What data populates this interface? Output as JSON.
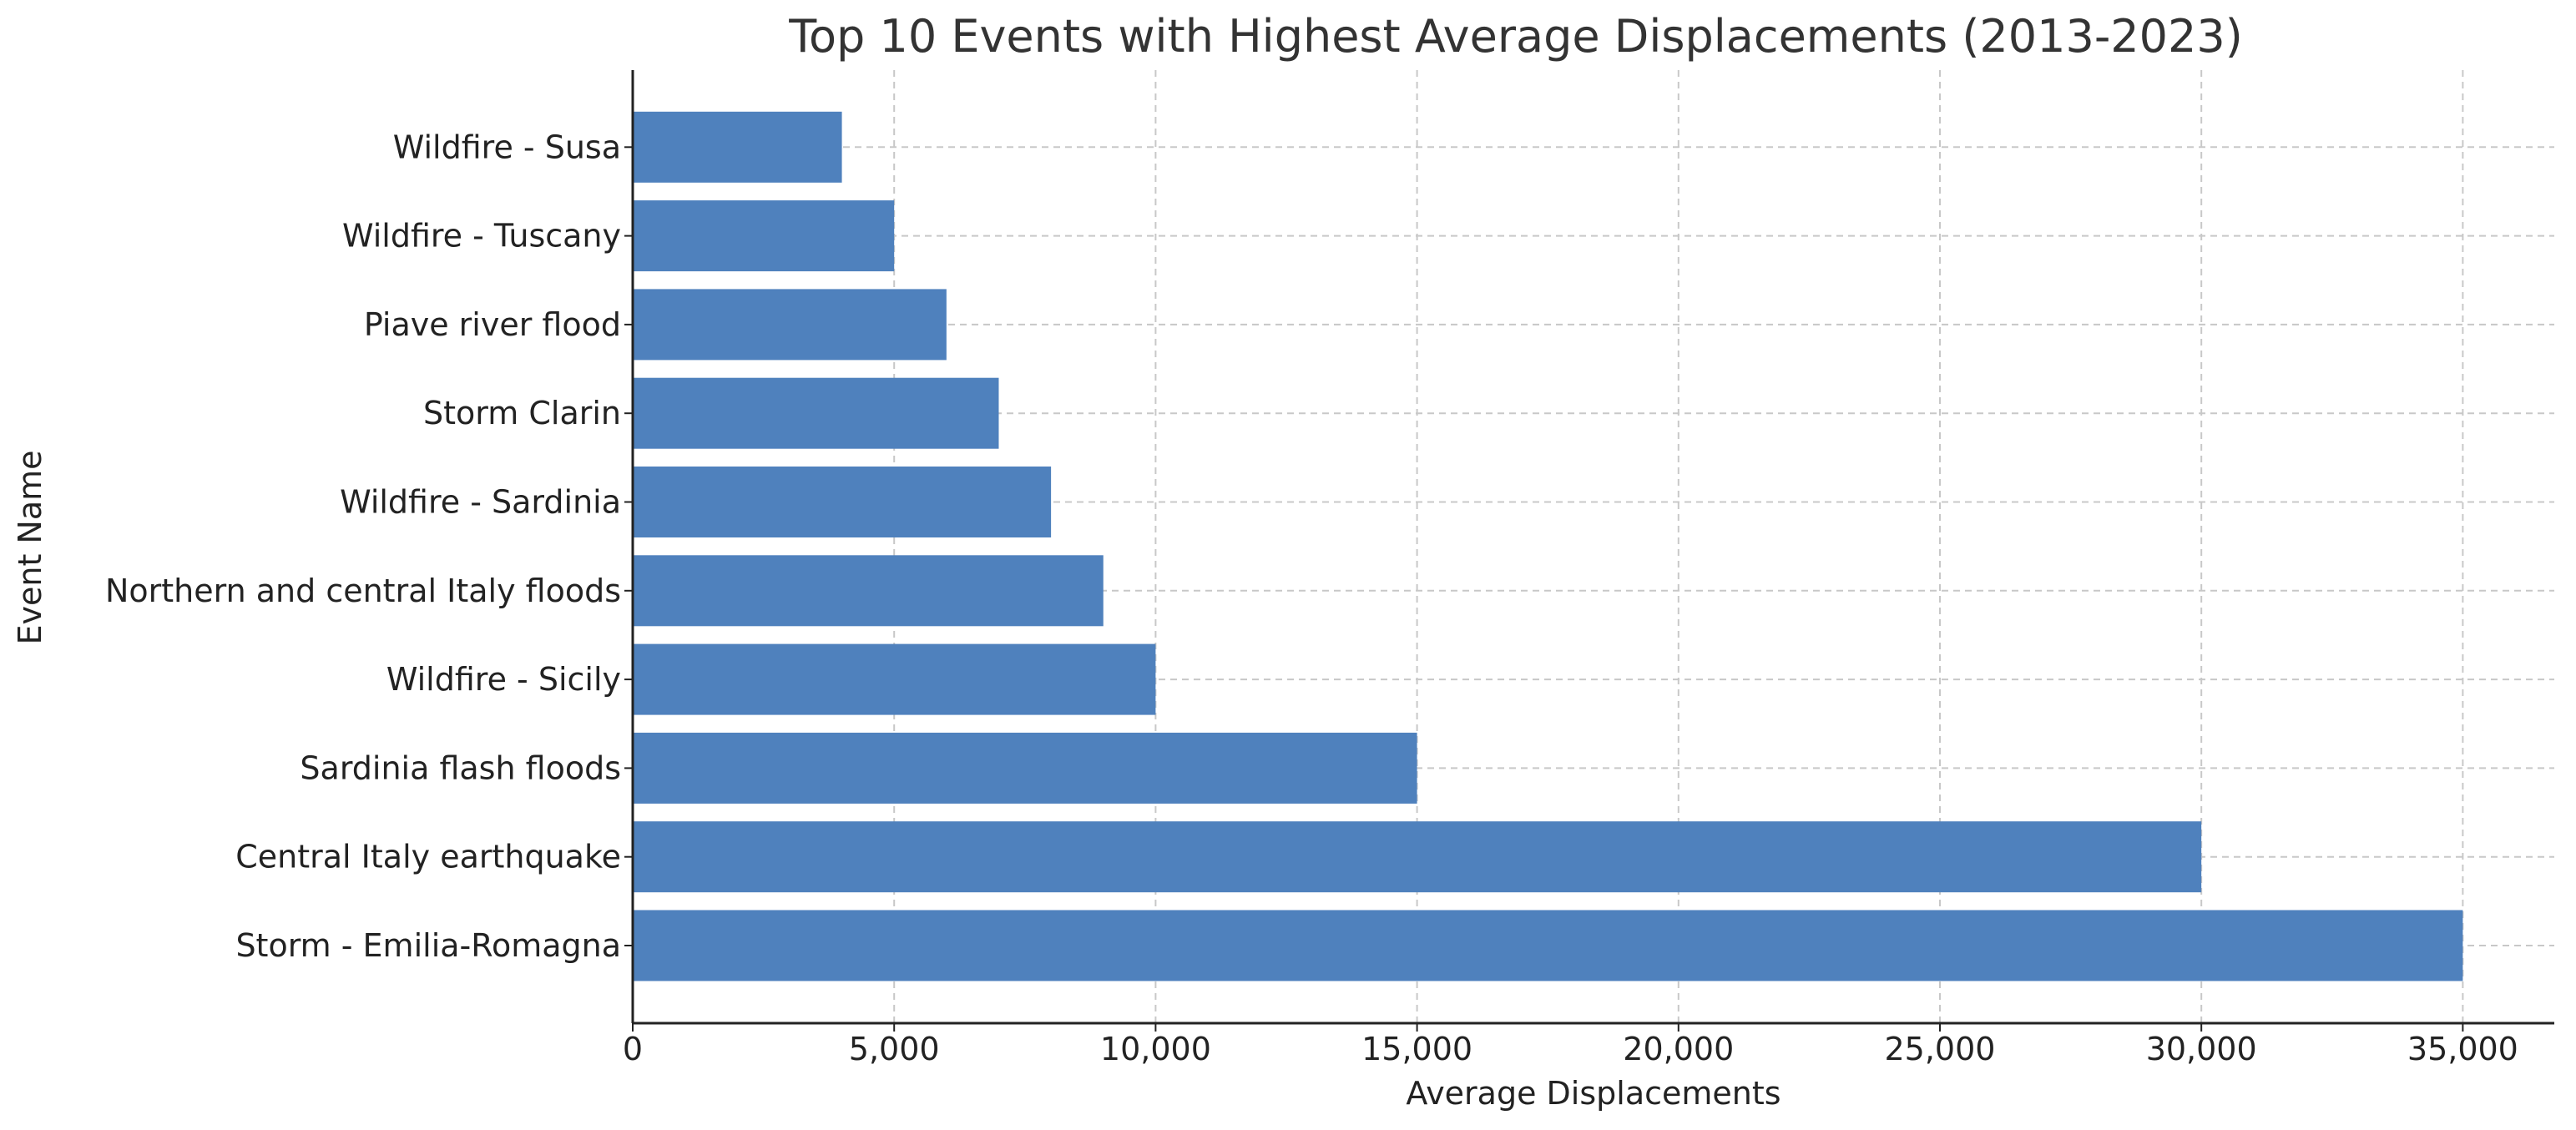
{
  "chart_data": {
    "type": "bar",
    "orientation": "horizontal",
    "title": "Top 10 Events with Highest Average Displacements (2013-2023)",
    "xlabel": "Average Displacements",
    "ylabel": "Event Name",
    "categories": [
      "Storm - Emilia-Romagna",
      "Central Italy earthquake",
      "Sardinia flash floods",
      "Wildfire - Sicily",
      "Northern and central Italy floods",
      "Wildfire - Sardinia",
      "Storm Clarin",
      "Piave river flood",
      "Wildfire - Tuscany",
      "Wildfire - Susa"
    ],
    "values": [
      35000,
      30000,
      15000,
      10000,
      9000,
      8000,
      7000,
      6000,
      5000,
      4000
    ],
    "xlim": [
      0,
      36750
    ],
    "xticks": [
      0,
      5000,
      10000,
      15000,
      20000,
      25000,
      30000,
      35000
    ],
    "xtick_labels": [
      "0",
      "5,000",
      "10,000",
      "15,000",
      "20,000",
      "25,000",
      "30,000",
      "35,000"
    ],
    "grid": true,
    "bar_color": "#4f81bd",
    "grid_color": "#c8c8c8",
    "text_color": "#222222",
    "title_color": "#333333"
  }
}
